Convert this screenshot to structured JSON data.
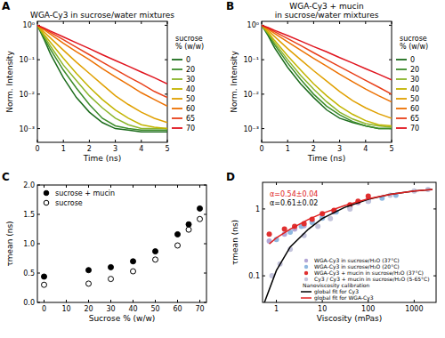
{
  "chart_data": [
    {
      "type": "line",
      "panel": "A",
      "title": "WGA-Cy3 in sucrose/water mixtures",
      "x_label": "Time (ns)",
      "y_label": "Norm. Intensity",
      "log": "y",
      "xlim": [
        0,
        5
      ],
      "xticks": [
        0,
        1,
        2,
        3,
        4,
        5
      ],
      "ylim": [
        0.0004,
        1.3
      ],
      "yticks": [
        {
          "value": 1,
          "label": "10⁰"
        },
        {
          "value": 0.1,
          "label": "10⁻¹"
        },
        {
          "value": 0.01,
          "label": "10⁻²"
        },
        {
          "value": 0.001,
          "label": "10⁻³"
        }
      ],
      "legend": "right",
      "legend_title": [
        "sucrose",
        "% (w/w)"
      ],
      "x": [
        0,
        0.25,
        0.5,
        1,
        1.5,
        2,
        2.5,
        3,
        3.5,
        4,
        4.5,
        5
      ],
      "series": [
        {
          "name": "0",
          "color": "#1b6b1b",
          "values": [
            1,
            0.4,
            0.15,
            0.03,
            0.008,
            0.003,
            0.0015,
            0.001,
            0.0009,
            0.0008,
            0.0008,
            0.0008
          ]
        },
        {
          "name": "20",
          "color": "#3c8c2a",
          "values": [
            1,
            0.45,
            0.2,
            0.05,
            0.015,
            0.005,
            0.002,
            0.0012,
            0.001,
            0.0009,
            0.0009,
            0.0009
          ]
        },
        {
          "name": "30",
          "color": "#8bb52a",
          "values": [
            1,
            0.5,
            0.25,
            0.07,
            0.025,
            0.009,
            0.004,
            0.002,
            0.0013,
            0.001,
            0.001,
            0.001
          ]
        },
        {
          "name": "40",
          "color": "#c3b400",
          "values": [
            1,
            0.55,
            0.32,
            0.11,
            0.04,
            0.016,
            0.007,
            0.0035,
            0.002,
            0.0013,
            0.0011,
            0.001
          ]
        },
        {
          "name": "50",
          "color": "#e0a000",
          "values": [
            1,
            0.65,
            0.43,
            0.19,
            0.085,
            0.04,
            0.019,
            0.009,
            0.005,
            0.003,
            0.002,
            0.0015
          ]
        },
        {
          "name": "60",
          "color": "#ec7000",
          "values": [
            1,
            0.75,
            0.55,
            0.3,
            0.17,
            0.1,
            0.055,
            0.032,
            0.019,
            0.011,
            0.007,
            0.0045
          ]
        },
        {
          "name": "65",
          "color": "#e8401a",
          "values": [
            1,
            0.8,
            0.62,
            0.38,
            0.23,
            0.14,
            0.085,
            0.052,
            0.032,
            0.02,
            0.012,
            0.008
          ]
        },
        {
          "name": "70",
          "color": "#e0141e",
          "values": [
            1,
            0.84,
            0.68,
            0.46,
            0.31,
            0.21,
            0.14,
            0.095,
            0.065,
            0.044,
            0.03,
            0.02
          ]
        }
      ]
    },
    {
      "type": "line",
      "panel": "B",
      "title": [
        "WGA-Cy3 + mucin",
        "in sucrose/water mixtures"
      ],
      "x_label": "Time (ns)",
      "y_label": "Norm. Intensity",
      "log": "y",
      "xlim": [
        0,
        5
      ],
      "xticks": [
        0,
        1,
        2,
        3,
        4,
        5
      ],
      "ylim": [
        0.0004,
        1.3
      ],
      "yticks": [
        {
          "value": 1,
          "label": "10⁰"
        },
        {
          "value": 0.1,
          "label": "10⁻¹"
        },
        {
          "value": 0.01,
          "label": "10⁻²"
        },
        {
          "value": 0.001,
          "label": "10⁻³"
        }
      ],
      "legend": "right",
      "legend_title": [
        "sucrose",
        "% (w/w)"
      ],
      "x": [
        0,
        0.25,
        0.5,
        1,
        1.5,
        2,
        2.5,
        3,
        3.5,
        4,
        4.5,
        5
      ],
      "series": [
        {
          "name": "0",
          "color": "#1b6b1b",
          "values": [
            1,
            0.5,
            0.22,
            0.06,
            0.02,
            0.008,
            0.0035,
            0.002,
            0.0015,
            0.0012,
            0.001,
            0.001
          ]
        },
        {
          "name": "20",
          "color": "#3c8c2a",
          "values": [
            1,
            0.55,
            0.27,
            0.08,
            0.027,
            0.01,
            0.0045,
            0.0025,
            0.0016,
            0.0012,
            0.001,
            0.001
          ]
        },
        {
          "name": "30",
          "color": "#8bb52a",
          "values": [
            1,
            0.58,
            0.31,
            0.1,
            0.035,
            0.014,
            0.006,
            0.003,
            0.0019,
            0.0014,
            0.0012,
            0.0011
          ]
        },
        {
          "name": "40",
          "color": "#c3b400",
          "values": [
            1,
            0.62,
            0.36,
            0.13,
            0.05,
            0.02,
            0.009,
            0.0045,
            0.0026,
            0.0017,
            0.0013,
            0.0012
          ]
        },
        {
          "name": "50",
          "color": "#e0a000",
          "values": [
            1,
            0.7,
            0.47,
            0.21,
            0.1,
            0.048,
            0.024,
            0.012,
            0.0065,
            0.004,
            0.0027,
            0.002
          ]
        },
        {
          "name": "60",
          "color": "#ec7000",
          "values": [
            1,
            0.78,
            0.58,
            0.33,
            0.19,
            0.11,
            0.065,
            0.038,
            0.023,
            0.014,
            0.009,
            0.006
          ]
        },
        {
          "name": "65",
          "color": "#e8401a",
          "values": [
            1,
            0.82,
            0.65,
            0.41,
            0.26,
            0.16,
            0.1,
            0.063,
            0.04,
            0.025,
            0.016,
            0.01
          ]
        },
        {
          "name": "70",
          "color": "#e0141e",
          "values": [
            1,
            0.86,
            0.71,
            0.5,
            0.35,
            0.24,
            0.17,
            0.115,
            0.08,
            0.055,
            0.038,
            0.026
          ]
        }
      ]
    },
    {
      "type": "scatter",
      "panel": "C",
      "x_label": "Sucrose % (w/w)",
      "y_label": "τmean (ns)",
      "xlim": [
        -3,
        73
      ],
      "xticks": [
        0,
        10,
        20,
        30,
        40,
        50,
        60,
        70
      ],
      "ylim": [
        0,
        2
      ],
      "yticks": [
        {
          "value": 0,
          "label": "0.0"
        },
        {
          "value": 0.5,
          "label": "0.5"
        },
        {
          "value": 1,
          "label": "1.0"
        },
        {
          "value": 1.5,
          "label": "1.5"
        },
        {
          "value": 2,
          "label": "2.0"
        }
      ],
      "legend": "upper left",
      "series": [
        {
          "name": "sucrose + mucin",
          "color": "#000000",
          "marker": "circle",
          "x": [
            0,
            20,
            30,
            40,
            50,
            60,
            65,
            70
          ],
          "values": [
            0.44,
            0.55,
            0.6,
            0.7,
            0.87,
            1.16,
            1.33,
            1.6
          ]
        },
        {
          "name": "sucrose",
          "color": "#000000",
          "marker": "open_circle",
          "x": [
            0,
            20,
            30,
            40,
            50,
            60,
            65,
            70
          ],
          "values": [
            0.3,
            0.32,
            0.4,
            0.53,
            0.73,
            0.97,
            1.24,
            1.42
          ]
        }
      ]
    },
    {
      "type": "scatter",
      "panel": "D",
      "x_label": "Viscosity (mPas)",
      "y_label": "τmean (ns)",
      "log": true,
      "xlim": [
        0.5,
        3000
      ],
      "xticks": [
        1,
        10,
        100,
        1000
      ],
      "ylim": [
        0.04,
        2.5
      ],
      "yticks": [
        0.1,
        1
      ],
      "legend": "lower right",
      "legend_subtitle": "Nanoviscosity calibration",
      "annotations": [
        {
          "text": "α=0.54±0.04",
          "color": "#e02020"
        },
        {
          "text": "α=0.61±0.02",
          "color": "#000000"
        }
      ],
      "series": [
        {
          "name": "WGA-Cy3 in sucrose/H₂O (37°C)",
          "color": "#b4a7d6",
          "marker": "circle",
          "x": [
            0.7,
            1.5,
            2.5,
            4,
            6,
            10,
            18,
            40,
            60,
            100
          ],
          "values": [
            0.33,
            0.42,
            0.5,
            0.56,
            0.65,
            0.75,
            0.9,
            1.1,
            1.25,
            1.4
          ]
        },
        {
          "name": "WGA-Cy3 in sucrose/H₂O (20°C)",
          "color": "#8fb8e0",
          "marker": "circle",
          "x": [
            1,
            2,
            3.5,
            6,
            10,
            20,
            40,
            100,
            200,
            400
          ],
          "values": [
            0.35,
            0.45,
            0.55,
            0.63,
            0.73,
            0.9,
            1.05,
            1.3,
            1.45,
            1.6
          ]
        },
        {
          "name": "WGA-Cy3 + mucin in sucrose/H₂O (37°C)",
          "color": "#e03030",
          "marker": "circle",
          "x": [
            0.7,
            1.5,
            2.5,
            4,
            6,
            10,
            18,
            40,
            60,
            100
          ],
          "values": [
            0.42,
            0.5,
            0.55,
            0.6,
            0.7,
            0.85,
            0.95,
            1.15,
            1.3,
            1.55
          ]
        },
        {
          "name": "Cy3 / Cy3 + mucin in sucrose/H₂O (5-65°C)",
          "color": "#c4c4dc",
          "marker": "circle",
          "x": [
            0.8,
            1.2,
            2,
            4,
            8,
            15,
            40,
            100,
            300,
            1000,
            2000
          ],
          "values": [
            0.1,
            0.15,
            0.25,
            0.4,
            0.55,
            0.72,
            1.0,
            1.3,
            1.6,
            1.85,
            1.95
          ]
        },
        {
          "name": "global fit for Cy3",
          "type": "line",
          "color": "#000000",
          "x": [
            0.55,
            1,
            2,
            5,
            10,
            30,
            100,
            300,
            1000,
            2500
          ],
          "values": [
            0.04,
            0.12,
            0.27,
            0.5,
            0.72,
            1.05,
            1.4,
            1.65,
            1.85,
            1.95
          ]
        },
        {
          "name": "global fit for WGA-Cy3",
          "type": "line",
          "color": "#e02020",
          "x": [
            0.7,
            1,
            2,
            5,
            10,
            30,
            100,
            300,
            1000,
            2500
          ],
          "values": [
            0.3,
            0.37,
            0.5,
            0.7,
            0.86,
            1.12,
            1.42,
            1.65,
            1.85,
            1.95
          ]
        }
      ]
    }
  ]
}
